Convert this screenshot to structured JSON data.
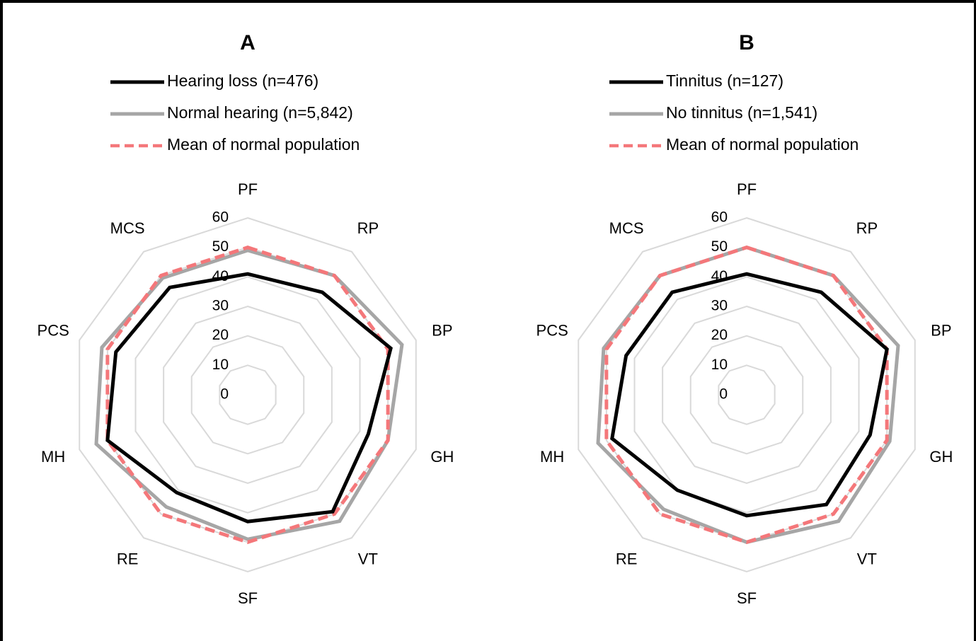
{
  "chart_data": [
    {
      "type": "radar",
      "panel": "A",
      "categories": [
        "PF",
        "RP",
        "BP",
        "GH",
        "VT",
        "SF",
        "RE",
        "MH",
        "PCS",
        "MCS"
      ],
      "rlim": [
        0,
        60
      ],
      "ticks": [
        "0",
        "10",
        "20",
        "30",
        "40",
        "50",
        "60"
      ],
      "grid": true,
      "legend": "top",
      "series": [
        {
          "name": "Hearing loss (n=476)",
          "values": [
            41,
            43,
            51,
            43,
            49,
            43,
            41,
            50,
            47,
            45
          ],
          "color": "#000000",
          "style": "solid"
        },
        {
          "name": "Normal hearing (n=5,842)",
          "values": [
            49,
            50,
            55,
            50,
            53,
            49,
            47,
            54,
            52,
            49
          ],
          "color": "#a6a6a6",
          "style": "solid"
        },
        {
          "name": "Mean of normal population",
          "values": [
            50,
            50,
            50,
            50,
            50,
            50,
            50,
            50,
            50,
            50
          ],
          "color": "#f4777a",
          "style": "dashed"
        }
      ]
    },
    {
      "type": "radar",
      "panel": "B",
      "categories": [
        "PF",
        "RP",
        "BP",
        "GH",
        "VT",
        "SF",
        "RE",
        "MH",
        "PCS",
        "MCS"
      ],
      "rlim": [
        0,
        60
      ],
      "ticks": [
        "0",
        "10",
        "20",
        "30",
        "40",
        "50",
        "60"
      ],
      "grid": true,
      "legend": "top",
      "series": [
        {
          "name": "Tinnitus (n=127)",
          "values": [
            41,
            43,
            50,
            44,
            46,
            41,
            40,
            48,
            43,
            43
          ],
          "color": "#000000",
          "style": "solid"
        },
        {
          "name": "No tinnitus (n=1,541)",
          "values": [
            50,
            50,
            54,
            51,
            53,
            50,
            48,
            53,
            51,
            50
          ],
          "color": "#a6a6a6",
          "style": "solid"
        },
        {
          "name": "Mean of normal population",
          "values": [
            50,
            50,
            50,
            50,
            50,
            50,
            50,
            50,
            50,
            50
          ],
          "color": "#f4777a",
          "style": "dashed"
        }
      ]
    }
  ]
}
